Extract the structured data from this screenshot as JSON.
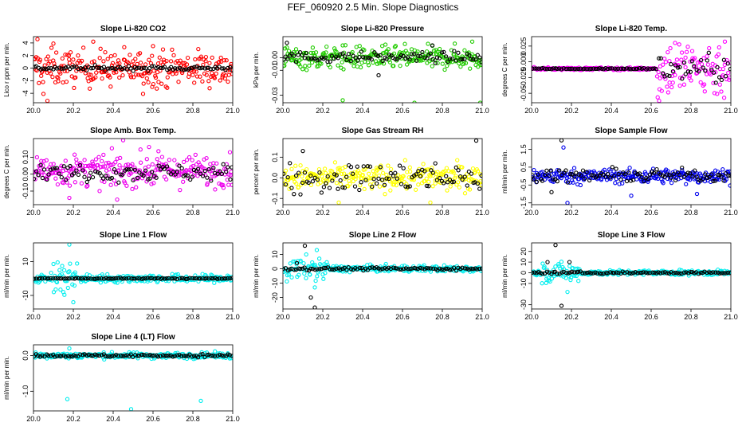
{
  "page": {
    "title": "FEF_060920  2.5 Min. Slope Diagnostics"
  },
  "chart_data": [
    {
      "type": "scatter",
      "title": "Slope Li-820 CO2",
      "ylabel": "Lico r ppm per min.",
      "xlim": [
        20.0,
        21.0
      ],
      "xticks": [
        "20.0",
        "20.2",
        "20.4",
        "20.6",
        "20.8",
        "21.0"
      ],
      "ylim": [
        -5.5,
        5.0
      ],
      "yticks": [
        {
          "v": 4,
          "t": "4"
        },
        {
          "v": 2,
          "t": "2"
        },
        {
          "v": 0,
          "t": "0"
        },
        {
          "v": -2,
          "t": "-2"
        },
        {
          "v": -4,
          "t": "-4"
        }
      ],
      "series": [
        {
          "name": "all",
          "color": "#ff0000",
          "pattern": {
            "n": 260,
            "base": 0,
            "spread": 2.8,
            "outliers": [
              [
                20.02,
                4.6
              ],
              [
                20.07,
                -5.2
              ],
              [
                20.05,
                -4.1
              ],
              [
                20.3,
                4.2
              ],
              [
                20.55,
                -4.1
              ],
              [
                20.6,
                3.5
              ],
              [
                20.1,
                3.9
              ]
            ]
          }
        },
        {
          "name": "selected",
          "color": "#000000",
          "pattern": {
            "n": 95,
            "base": 0,
            "spread": 0.35
          }
        }
      ]
    },
    {
      "type": "scatter",
      "title": "Slope Li-820 Pressure",
      "ylabel": "kPa per min.",
      "xlim": [
        20.0,
        21.0
      ],
      "xticks": [
        "20.0",
        "20.2",
        "20.4",
        "20.6",
        "20.8",
        "21.0"
      ],
      "ylim": [
        -0.036,
        0.017
      ],
      "yticks": [
        {
          "v": 0.0,
          "t": "0.00"
        },
        {
          "v": -0.01,
          "t": "-0.01"
        },
        {
          "v": -0.03,
          "t": "-0.03"
        }
      ],
      "series": [
        {
          "name": "all",
          "color": "#22cc00",
          "pattern": {
            "n": 260,
            "base": 0,
            "spread": 0.009,
            "outliers": [
              [
                20.3,
                -0.034
              ],
              [
                20.66,
                -0.036
              ],
              [
                20.99,
                -0.036
              ],
              [
                20.95,
                0.013
              ],
              [
                20.3,
                0.01
              ]
            ]
          }
        },
        {
          "name": "selected",
          "color": "#000000",
          "pattern": {
            "n": 95,
            "base": 0.0005,
            "spread": 0.004,
            "outliers": [
              [
                20.02,
                0.012
              ],
              [
                20.48,
                -0.014
              ],
              [
                20.75,
                0.01
              ]
            ]
          }
        }
      ]
    },
    {
      "type": "scatter",
      "title": "Slope Li-820 Temp.",
      "ylabel": "degrees C per min.",
      "xlim": [
        20.0,
        21.0
      ],
      "xticks": [
        "20.0",
        "20.2",
        "20.4",
        "20.6",
        "20.8",
        "21.0"
      ],
      "ylim": [
        -0.065,
        0.04
      ],
      "yticks": [
        {
          "v": 0.025,
          "t": "0.025"
        },
        {
          "v": 0.0,
          "t": "0.000"
        },
        {
          "v": -0.025,
          "t": "-0.025"
        },
        {
          "v": -0.05,
          "t": "-0.05"
        }
      ],
      "series": [
        {
          "name": "all",
          "color": "#ff00ff",
          "pattern": {
            "n": 260,
            "base": -0.011,
            "spread": 0.002,
            "late": {
              "from": 20.62,
              "spread": 0.045
            },
            "outliers": [
              [
                20.64,
                -0.062
              ],
              [
                20.97,
                0.032
              ],
              [
                20.72,
                0.03
              ]
            ]
          }
        },
        {
          "name": "selected",
          "color": "#000000",
          "pattern": {
            "n": 95,
            "base": -0.011,
            "spread": 0.001,
            "late": {
              "from": 20.62,
              "spread": 0.022
            }
          }
        }
      ]
    },
    {
      "type": "scatter",
      "title": "Slope Amb. Box Temp.",
      "ylabel": "degrees C per min.",
      "xlim": [
        20.0,
        21.0
      ],
      "xticks": [
        "20.0",
        "20.2",
        "20.4",
        "20.6",
        "20.8",
        "21.0"
      ],
      "ylim": [
        -0.18,
        0.21
      ],
      "yticks": [
        {
          "v": 0.1,
          "t": "0.10"
        },
        {
          "v": 0.0,
          "t": "0.00"
        },
        {
          "v": -0.1,
          "t": "-0.10"
        }
      ],
      "series": [
        {
          "name": "all",
          "color": "#ee00ee",
          "pattern": {
            "n": 260,
            "base": 0.02,
            "spread": 0.09,
            "outliers": [
              [
                20.45,
                0.2
              ],
              [
                20.18,
                -0.14
              ],
              [
                20.42,
                -0.15
              ],
              [
                20.58,
                0.16
              ]
            ]
          }
        },
        {
          "name": "selected",
          "color": "#000000",
          "pattern": {
            "n": 95,
            "base": 0.01,
            "spread": 0.05
          }
        }
      ]
    },
    {
      "type": "scatter",
      "title": "Slope Gas Stream RH",
      "ylabel": "percent per min.",
      "xlim": [
        20.0,
        21.0
      ],
      "xticks": [
        "20.0",
        "20.2",
        "20.4",
        "20.6",
        "20.8",
        "21.0"
      ],
      "ylim": [
        -0.13,
        0.19
      ],
      "yticks": [
        {
          "v": 0.1,
          "t": "0.1"
        },
        {
          "v": 0.0,
          "t": "0.0"
        },
        {
          "v": -0.1,
          "t": "-0.1"
        }
      ],
      "series": [
        {
          "name": "all",
          "color": "#ffff00",
          "pattern": {
            "n": 260,
            "base": 0,
            "spread": 0.06,
            "outliers": [
              [
                20.28,
                -0.12
              ],
              [
                20.74,
                -0.12
              ]
            ]
          }
        },
        {
          "name": "selected",
          "color": "#000000",
          "pattern": {
            "n": 95,
            "base": 0,
            "spread": 0.07,
            "outliers": [
              [
                20.97,
                0.18
              ],
              [
                20.1,
                0.13
              ]
            ]
          }
        }
      ]
    },
    {
      "type": "scatter",
      "title": "Slope Sample Flow",
      "ylabel": "ml/min per min.",
      "xlim": [
        20.0,
        21.0
      ],
      "xticks": [
        "20.0",
        "20.2",
        "20.4",
        "20.6",
        "20.8",
        "21.0"
      ],
      "ylim": [
        -1.6,
        2.1
      ],
      "yticks": [
        {
          "v": 1.5,
          "t": "1.5"
        },
        {
          "v": 0.5,
          "t": "0.5"
        },
        {
          "v": -0.5,
          "t": "-0.5"
        },
        {
          "v": -1.5,
          "t": "-1.5"
        }
      ],
      "series": [
        {
          "name": "all",
          "color": "#0000ee",
          "pattern": {
            "n": 260,
            "base": 0,
            "spread": 0.4,
            "outliers": [
              [
                20.18,
                -1.5
              ],
              [
                20.16,
                1.6
              ],
              [
                20.5,
                -1.1
              ],
              [
                20.83,
                -1.0
              ]
            ]
          }
        },
        {
          "name": "selected",
          "color": "#000000",
          "pattern": {
            "n": 95,
            "base": 0.02,
            "spread": 0.35,
            "outliers": [
              [
                20.15,
                2.0
              ],
              [
                20.1,
                -0.9
              ]
            ]
          }
        }
      ]
    },
    {
      "type": "scatter",
      "title": "Slope Line 1 Flow",
      "ylabel": "ml/min per min.",
      "xlim": [
        20.0,
        21.0
      ],
      "xticks": [
        "20.0",
        "20.2",
        "20.4",
        "20.6",
        "20.8",
        "21.0"
      ],
      "ylim": [
        -18,
        21
      ],
      "yticks": [
        {
          "v": 10,
          "t": "10"
        },
        {
          "v": -10,
          "t": "-10"
        }
      ],
      "series": [
        {
          "name": "all",
          "color": "#00eeee",
          "pattern": {
            "n": 260,
            "base": 0,
            "spread": 2.3,
            "burst": {
              "from": 20.1,
              "to": 20.22,
              "spread": 12
            },
            "outliers": [
              [
                20.18,
                20
              ],
              [
                20.2,
                -14
              ],
              [
                20.15,
                -8
              ]
            ]
          }
        },
        {
          "name": "selected",
          "color": "#000000",
          "pattern": {
            "n": 95,
            "base": 0,
            "spread": 0.3
          }
        }
      ]
    },
    {
      "type": "scatter",
      "title": "Slope Line 2 Flow",
      "ylabel": "ml/min per min.",
      "xlim": [
        20.0,
        21.0
      ],
      "xticks": [
        "20.0",
        "20.2",
        "20.4",
        "20.6",
        "20.8",
        "21.0"
      ],
      "ylim": [
        -28,
        18
      ],
      "yticks": [
        {
          "v": 10,
          "t": "10"
        },
        {
          "v": 0,
          "t": "0"
        },
        {
          "v": -10,
          "t": "-10"
        },
        {
          "v": -20,
          "t": "-20"
        }
      ],
      "series": [
        {
          "name": "all",
          "color": "#00eeee",
          "pattern": {
            "n": 260,
            "base": 0,
            "spread": 2.2,
            "burst": {
              "from": 20.0,
              "to": 20.22,
              "spread": 8
            },
            "outliers": [
              [
                20.17,
                13
              ],
              [
                20.16,
                -13
              ]
            ]
          }
        },
        {
          "name": "selected",
          "color": "#000000",
          "pattern": {
            "n": 95,
            "base": 0,
            "spread": 1.0,
            "outliers": [
              [
                20.11,
                16
              ],
              [
                20.16,
                -27
              ],
              [
                20.14,
                -20
              ],
              [
                20.07,
                4
              ]
            ]
          }
        }
      ]
    },
    {
      "type": "scatter",
      "title": "Slope Line 3 Flow",
      "ylabel": "ml/min per min.",
      "xlim": [
        20.0,
        21.0
      ],
      "xticks": [
        "20.0",
        "20.2",
        "20.4",
        "20.6",
        "20.8",
        "21.0"
      ],
      "ylim": [
        -34,
        28
      ],
      "yticks": [
        {
          "v": 20,
          "t": "20"
        },
        {
          "v": 10,
          "t": "10"
        },
        {
          "v": 0,
          "t": "0"
        },
        {
          "v": -10,
          "t": "-10"
        },
        {
          "v": -30,
          "t": "-30"
        }
      ],
      "series": [
        {
          "name": "all",
          "color": "#00eeee",
          "pattern": {
            "n": 260,
            "base": 0,
            "spread": 2.3,
            "burst": {
              "from": 20.05,
              "to": 20.25,
              "spread": 9
            },
            "outliers": [
              [
                20.18,
                -18
              ]
            ]
          }
        },
        {
          "name": "selected",
          "color": "#000000",
          "pattern": {
            "n": 95,
            "base": 0,
            "spread": 1.0,
            "outliers": [
              [
                20.12,
                26
              ],
              [
                20.15,
                -31
              ],
              [
                20.08,
                10
              ],
              [
                20.19,
                10
              ]
            ]
          }
        }
      ]
    },
    {
      "type": "scatter",
      "title": "Slope Line 4 (LT) Flow",
      "ylabel": "ml/min per min.",
      "xlim": [
        20.0,
        21.0
      ],
      "xticks": [
        "20.0",
        "20.2",
        "20.4",
        "20.6",
        "20.8",
        "21.0"
      ],
      "ylim": [
        -1.55,
        0.3
      ],
      "yticks": [
        {
          "v": 0.0,
          "t": "0.0"
        },
        {
          "v": -1.0,
          "t": "-1.0"
        }
      ],
      "series": [
        {
          "name": "all",
          "color": "#00eeee",
          "pattern": {
            "n": 260,
            "base": 0,
            "spread": 0.08,
            "outliers": [
              [
                20.17,
                -1.22
              ],
              [
                20.49,
                -1.5
              ],
              [
                20.84,
                -1.27
              ],
              [
                20.18,
                0.2
              ]
            ]
          }
        },
        {
          "name": "selected",
          "color": "#000000",
          "pattern": {
            "n": 95,
            "base": 0,
            "spread": 0.04
          }
        }
      ]
    }
  ]
}
